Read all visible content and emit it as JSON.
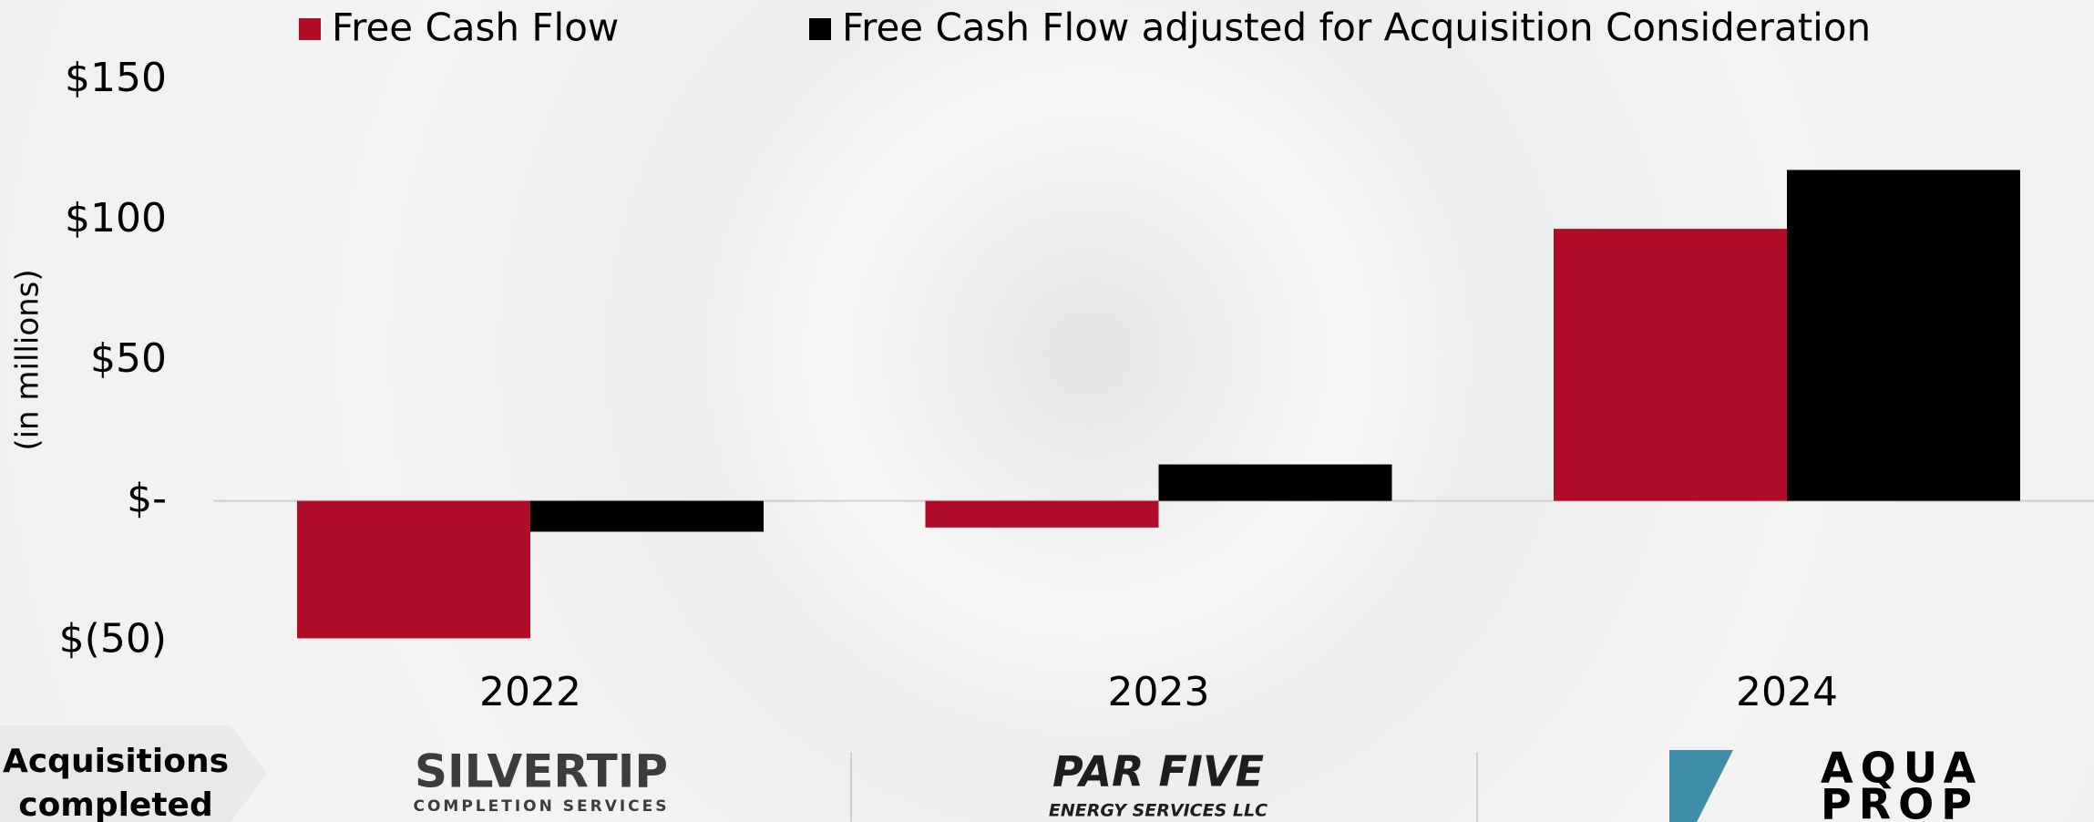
{
  "chart_data": {
    "type": "bar",
    "categories": [
      "2022",
      "2023",
      "2024"
    ],
    "series": [
      {
        "name": "Free Cash Flow",
        "color": "#b00c28",
        "values": [
          -49,
          -9.5,
          97
        ]
      },
      {
        "name": "Free Cash Flow adjusted for Acquisition Consideration",
        "color": "#000000",
        "values": [
          -11,
          13,
          118
        ]
      }
    ],
    "y_label": "(in millions)",
    "ylim": [
      -50,
      150
    ],
    "yticks": [
      {
        "value": -50,
        "label": "$(50)"
      },
      {
        "value": 0,
        "label": "$-"
      },
      {
        "value": 50,
        "label": "$50"
      },
      {
        "value": 100,
        "label": "$100"
      },
      {
        "value": 150,
        "label": "$150"
      }
    ],
    "legend": "top"
  },
  "acquisitions": {
    "label_line1": "Acquisitions",
    "label_line2": "completed",
    "logos": [
      {
        "name": "SILVERTIP",
        "sub": "COMPLETION SERVICES"
      },
      {
        "name": "PAR FIVE",
        "sub": "ENERGY SERVICES LLC"
      },
      {
        "name": "AQUA",
        "sub": "PROP"
      }
    ]
  }
}
